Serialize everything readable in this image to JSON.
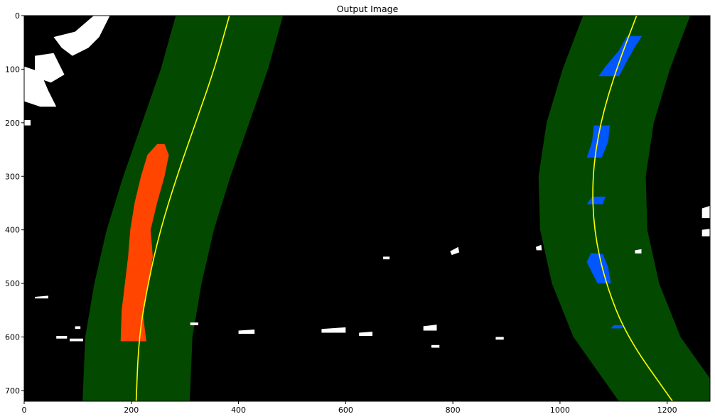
{
  "chart_data": {
    "type": "image",
    "title": "Output Image",
    "xlabel": "",
    "ylabel": "",
    "xlim": [
      0,
      1280
    ],
    "ylim": [
      720,
      0
    ],
    "x_ticks": [
      0,
      200,
      400,
      600,
      800,
      1000,
      1200
    ],
    "y_ticks": [
      0,
      100,
      200,
      300,
      400,
      500,
      600,
      700
    ],
    "grid": false,
    "colors": {
      "background": "#000000",
      "search_band": "#034a00",
      "fit_line": "#ffff00",
      "left_lane_pixels": "#ff4500",
      "right_lane_pixels": "#0057ff",
      "other_pixels": "#ffffff"
    },
    "fit_lines": [
      {
        "name": "",
        "points": [
          [
            383,
            0
          ],
          [
            355,
            100
          ],
          [
            320,
            200
          ],
          [
            285,
            300
          ],
          [
            254,
            400
          ],
          [
            231,
            500
          ],
          [
            214,
            600
          ],
          [
            209,
            720
          ]
        ]
      },
      {
        "name": "",
        "points": [
          [
            1143,
            0
          ],
          [
            1105,
            100
          ],
          [
            1075,
            200
          ],
          [
            1060,
            300
          ],
          [
            1063,
            400
          ],
          [
            1085,
            500
          ],
          [
            1125,
            600
          ],
          [
            1210,
            720
          ]
        ]
      }
    ],
    "search_band_half_width": 100,
    "lane_pixel_regions": [
      {
        "lane": "left",
        "polygon": [
          [
            262,
            240
          ],
          [
            248,
            240
          ],
          [
            230,
            260
          ],
          [
            218,
            300
          ],
          [
            206,
            350
          ],
          [
            198,
            400
          ],
          [
            194,
            450
          ],
          [
            188,
            500
          ],
          [
            182,
            550
          ],
          [
            180,
            608
          ],
          [
            228,
            608
          ],
          [
            222,
            560
          ],
          [
            232,
            500
          ],
          [
            240,
            450
          ],
          [
            236,
            400
          ],
          [
            248,
            350
          ],
          [
            262,
            300
          ],
          [
            270,
            260
          ]
        ]
      },
      {
        "lane": "right",
        "polygon": [
          [
            1125,
            38
          ],
          [
            1153,
            38
          ],
          [
            1140,
            58
          ],
          [
            1125,
            85
          ],
          [
            1110,
            113
          ],
          [
            1072,
            113
          ],
          [
            1085,
            95
          ],
          [
            1110,
            65
          ]
        ]
      },
      {
        "lane": "right",
        "polygon": [
          [
            1063,
            205
          ],
          [
            1093,
            205
          ],
          [
            1090,
            235
          ],
          [
            1078,
            265
          ],
          [
            1050,
            265
          ],
          [
            1060,
            235
          ]
        ]
      },
      {
        "lane": "right",
        "polygon": [
          [
            1060,
            338
          ],
          [
            1085,
            338
          ],
          [
            1080,
            352
          ],
          [
            1050,
            352
          ]
        ]
      },
      {
        "lane": "right",
        "polygon": [
          [
            1058,
            443
          ],
          [
            1080,
            445
          ],
          [
            1090,
            470
          ],
          [
            1095,
            500
          ],
          [
            1070,
            500
          ],
          [
            1060,
            480
          ],
          [
            1050,
            460
          ]
        ]
      },
      {
        "lane": "right",
        "polygon": [
          [
            1100,
            578
          ],
          [
            1120,
            578
          ],
          [
            1115,
            584
          ],
          [
            1095,
            584
          ]
        ]
      }
    ],
    "other_pixel_regions": [
      [
        [
          0,
          95
        ],
        [
          30,
          105
        ],
        [
          45,
          140
        ],
        [
          60,
          170
        ],
        [
          30,
          170
        ],
        [
          0,
          160
        ]
      ],
      [
        [
          0,
          195
        ],
        [
          12,
          195
        ],
        [
          12,
          205
        ],
        [
          0,
          205
        ]
      ],
      [
        [
          55,
          40
        ],
        [
          95,
          30
        ],
        [
          130,
          0
        ],
        [
          160,
          0
        ],
        [
          140,
          40
        ],
        [
          120,
          60
        ],
        [
          90,
          75
        ],
        [
          70,
          60
        ]
      ],
      [
        [
          20,
          75
        ],
        [
          55,
          70
        ],
        [
          75,
          110
        ],
        [
          50,
          125
        ],
        [
          20,
          115
        ]
      ],
      [
        [
          1265,
          360
        ],
        [
          1280,
          355
        ],
        [
          1280,
          378
        ],
        [
          1265,
          378
        ]
      ],
      [
        [
          1265,
          400
        ],
        [
          1280,
          398
        ],
        [
          1280,
          412
        ],
        [
          1265,
          412
        ]
      ],
      [
        [
          670,
          450
        ],
        [
          682,
          450
        ],
        [
          682,
          455
        ],
        [
          670,
          455
        ]
      ],
      [
        [
          795,
          440
        ],
        [
          810,
          432
        ],
        [
          812,
          442
        ],
        [
          798,
          447
        ]
      ],
      [
        [
          955,
          432
        ],
        [
          965,
          428
        ],
        [
          966,
          438
        ],
        [
          956,
          438
        ]
      ],
      [
        [
          1140,
          438
        ],
        [
          1152,
          436
        ],
        [
          1152,
          444
        ],
        [
          1140,
          444
        ]
      ],
      [
        [
          555,
          585
        ],
        [
          600,
          582
        ],
        [
          600,
          592
        ],
        [
          555,
          592
        ]
      ],
      [
        [
          745,
          580
        ],
        [
          770,
          577
        ],
        [
          770,
          588
        ],
        [
          745,
          588
        ]
      ],
      [
        [
          625,
          592
        ],
        [
          650,
          590
        ],
        [
          650,
          598
        ],
        [
          625,
          598
        ]
      ],
      [
        [
          400,
          588
        ],
        [
          430,
          586
        ],
        [
          430,
          594
        ],
        [
          400,
          594
        ]
      ],
      [
        [
          60,
          598
        ],
        [
          80,
          598
        ],
        [
          80,
          603
        ],
        [
          60,
          603
        ]
      ],
      [
        [
          85,
          603
        ],
        [
          110,
          603
        ],
        [
          110,
          608
        ],
        [
          85,
          608
        ]
      ],
      [
        [
          95,
          580
        ],
        [
          105,
          580
        ],
        [
          105,
          585
        ],
        [
          95,
          585
        ]
      ],
      [
        [
          20,
          525
        ],
        [
          45,
          523
        ],
        [
          45,
          528
        ],
        [
          20,
          528
        ]
      ],
      [
        [
          310,
          573
        ],
        [
          325,
          573
        ],
        [
          325,
          578
        ],
        [
          310,
          578
        ]
      ],
      [
        [
          880,
          600
        ],
        [
          895,
          600
        ],
        [
          895,
          605
        ],
        [
          880,
          605
        ]
      ],
      [
        [
          760,
          615
        ],
        [
          775,
          615
        ],
        [
          775,
          620
        ],
        [
          760,
          620
        ]
      ]
    ]
  }
}
